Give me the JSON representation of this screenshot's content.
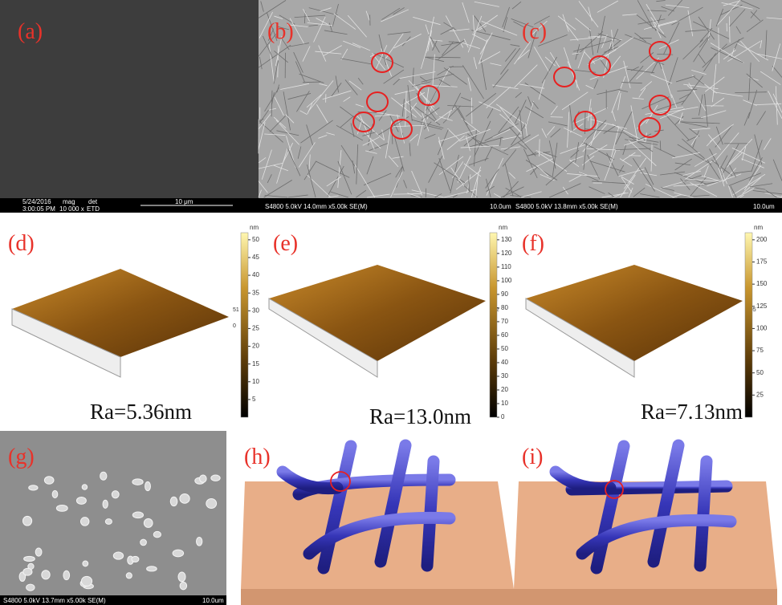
{
  "top": {
    "a": {
      "label": "(a)",
      "date": "5/24/2016",
      "time": "3:00:05 PM",
      "mag_title": "mag",
      "mag": "10 000 x",
      "det_title": "det",
      "det": "ETD",
      "scale": "10 μm"
    },
    "b": {
      "label": "(b)",
      "info": "S4800 5.0kV 14.0mm x5.00k SE(M)",
      "scale": "10.0um"
    },
    "c": {
      "label": "(c)",
      "info": "S4800 5.0kV 13.8mm x5.00k SE(M)",
      "scale": "10.0um"
    }
  },
  "afm": [
    {
      "label": "(d)",
      "unit": "nm",
      "ticks": [
        50,
        45,
        40,
        35,
        30,
        25,
        20,
        15,
        10,
        5
      ],
      "max": "51",
      "min": "0",
      "ra": "Ra=5.36nm"
    },
    {
      "label": "(e)",
      "unit": "nm",
      "ticks": [
        130,
        120,
        110,
        100,
        90,
        80,
        70,
        60,
        50,
        40,
        30,
        20,
        10,
        0
      ],
      "max": "132",
      "min": "0",
      "ra": "Ra=13.0nm"
    },
    {
      "label": "(f)",
      "unit": "nm",
      "ticks": [
        200,
        175,
        150,
        125,
        100,
        75,
        50,
        25
      ],
      "max": "205",
      "min": "0",
      "ra": "Ra=7.13nm"
    }
  ],
  "bottom": {
    "g": {
      "label": "(g)",
      "info": "S4800 5.0kV 13.7mm x5.00k SE(M)",
      "scale": "10.0um"
    },
    "h": {
      "label": "(h)"
    },
    "i": {
      "label": "(i)"
    }
  }
}
